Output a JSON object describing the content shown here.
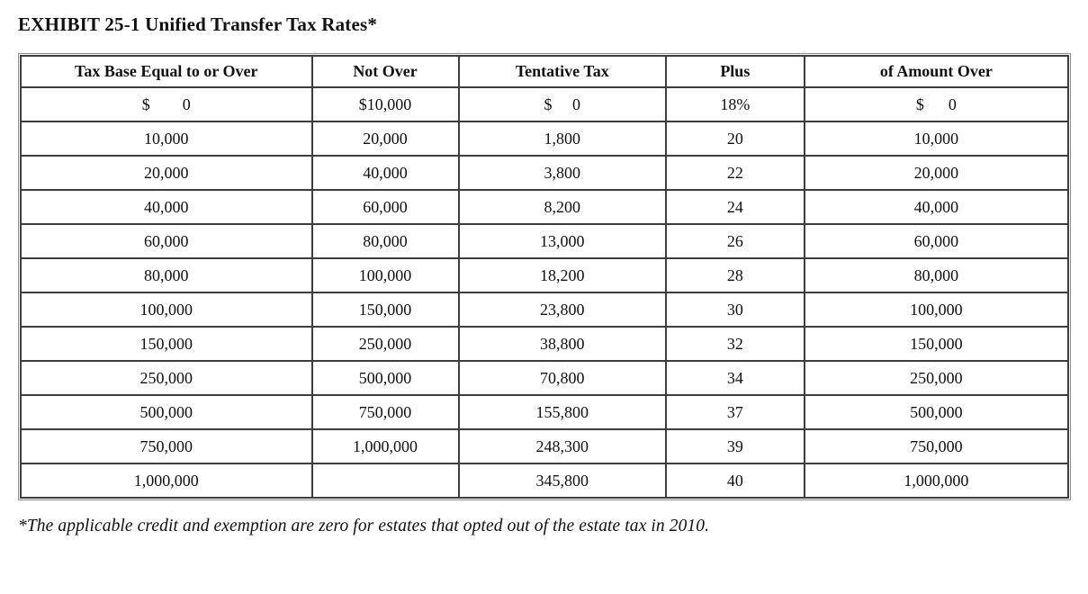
{
  "title": "EXHIBIT 25-1 Unified Transfer Tax Rates*",
  "table": {
    "headers": [
      "Tax Base Equal to or Over",
      "Not Over",
      "Tentative Tax",
      "Plus",
      "of Amount Over"
    ],
    "rows": [
      [
        "$        0",
        "$10,000",
        "$     0",
        "18%",
        "$      0"
      ],
      [
        "10,000",
        "20,000",
        "1,800",
        "20",
        "10,000"
      ],
      [
        "20,000",
        "40,000",
        "3,800",
        "22",
        "20,000"
      ],
      [
        "40,000",
        "60,000",
        "8,200",
        "24",
        "40,000"
      ],
      [
        "60,000",
        "80,000",
        "13,000",
        "26",
        "60,000"
      ],
      [
        "80,000",
        "100,000",
        "18,200",
        "28",
        "80,000"
      ],
      [
        "100,000",
        "150,000",
        "23,800",
        "30",
        "100,000"
      ],
      [
        "150,000",
        "250,000",
        "38,800",
        "32",
        "150,000"
      ],
      [
        "250,000",
        "500,000",
        "70,800",
        "34",
        "250,000"
      ],
      [
        "500,000",
        "750,000",
        "155,800",
        "37",
        "500,000"
      ],
      [
        "750,000",
        "1,000,000",
        "248,300",
        "39",
        "750,000"
      ],
      [
        "1,000,000",
        "",
        "345,800",
        "40",
        "1,000,000"
      ]
    ]
  },
  "footnote": "*The applicable credit and exemption are zero for estates that opted out of the estate tax in 2010.",
  "colors": {
    "border_dark": "#3d3d3d",
    "border_outer_gray": "#8c8c8c",
    "text": "#111111",
    "background": "#ffffff"
  }
}
